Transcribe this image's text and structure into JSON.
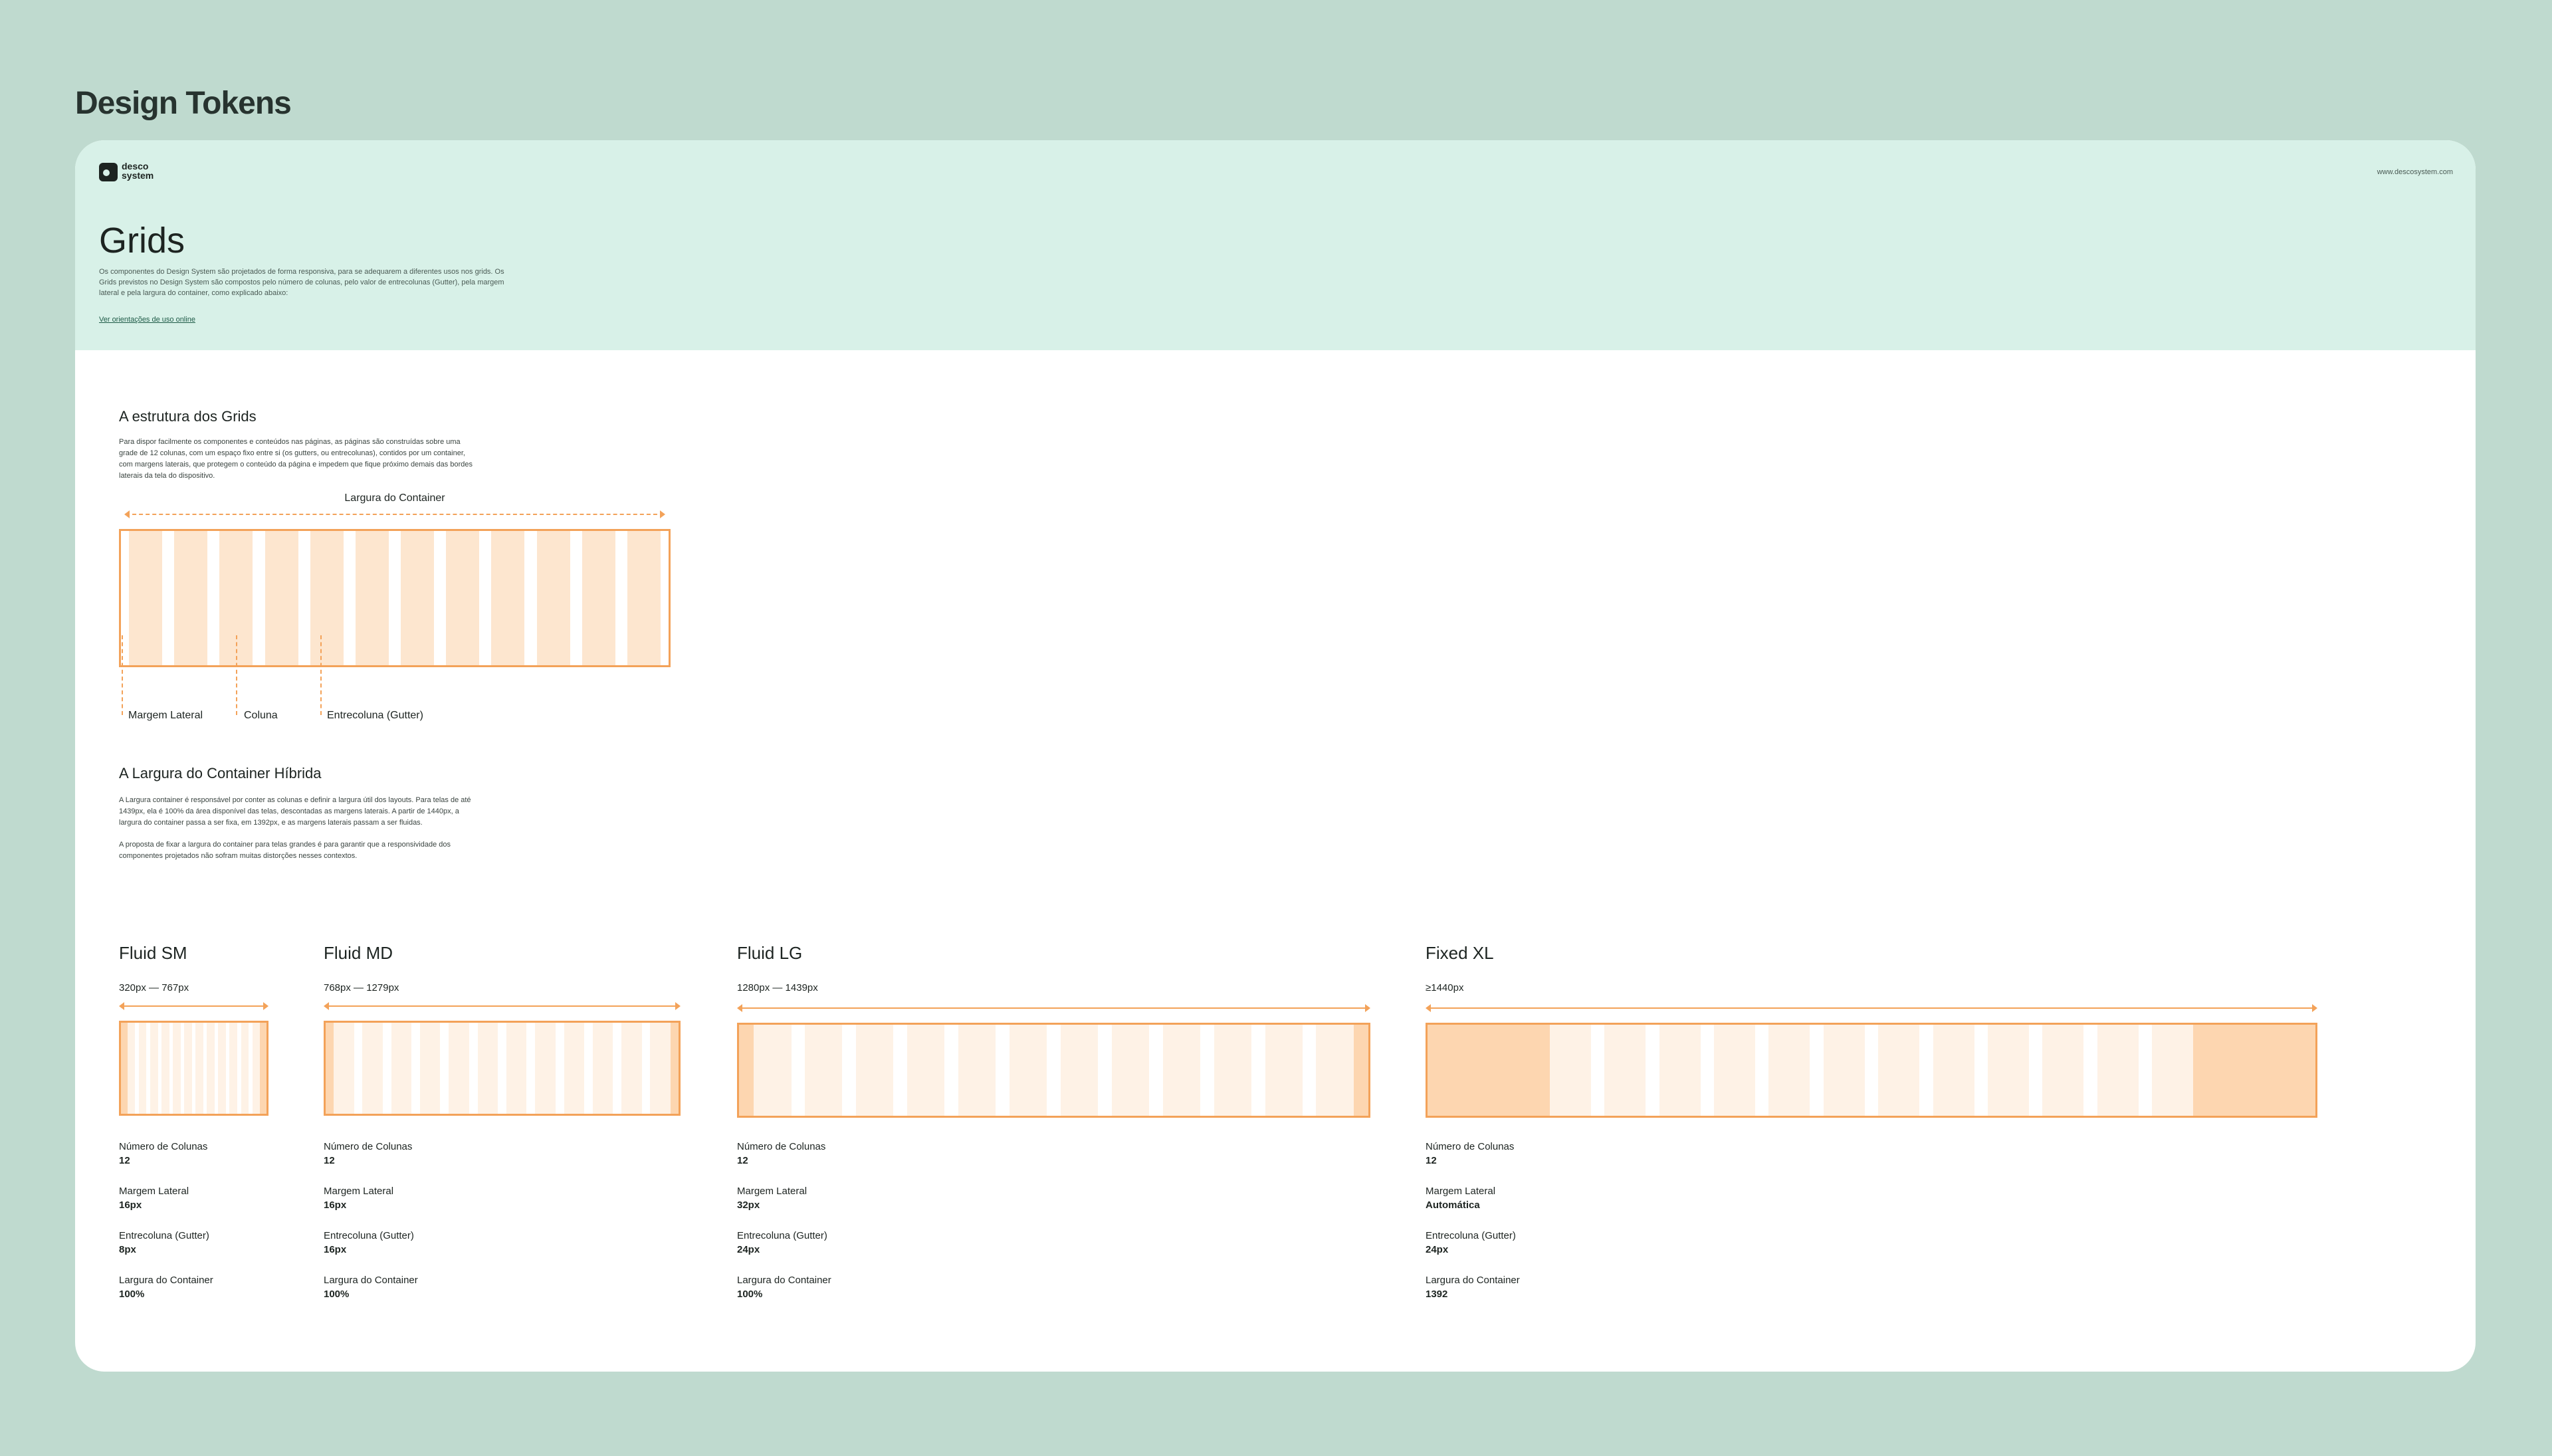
{
  "page_title": "Design Tokens",
  "header": {
    "logo": "desco system",
    "url": "www.descosystem.com",
    "title": "Grids",
    "description": "Os componentes do Design System são projetados de forma responsiva, para se adequarem a diferentes usos nos grids. Os Grids previstos no Design System são compostos pelo número de colunas, pelo valor de entrecolunas (Gutter), pela margem lateral e pela largura do container, como explicado abaixo:",
    "link": "Ver orientações de uso online"
  },
  "structure": {
    "title": "A estrutura dos Grids",
    "text": "Para dispor facilmente os componentes e conteúdos nas páginas, as páginas são construídas sobre uma grade de 12 colunas, com um espaço fixo entre si (os gutters, ou entrecolunas), contidos por um container, com margens laterais, que protegem o conteúdo da página e impedem que fique próximo demais das bordes laterais da tela do dispositivo.",
    "container_label": "Largura do Container",
    "annotations": [
      "Margem Lateral",
      "Coluna",
      "Entrecoluna (Gutter)"
    ]
  },
  "hybrid": {
    "title": "A Largura do Container Híbrida",
    "paragraphs": [
      "A Largura container é responsável por conter as colunas e definir a largura útil dos layouts. Para telas de até 1439px, ela é 100% da área disponível das telas, descontadas as margens laterais. A partir de 1440px, a largura do container passa a ser fixa, em 1392px, e as margens laterais passam a ser fluidas.",
      "A proposta de fixar a largura do container para telas grandes é para garantir que a responsividade dos componentes projetados não sofram muitas distorções nesses contextos."
    ]
  },
  "grids": [
    {
      "name": "Fluid SM",
      "range": "320px — 767px",
      "specs": [
        {
          "label": "Número de Colunas",
          "value": "12"
        },
        {
          "label": "Margem Lateral",
          "value": "16px"
        },
        {
          "label": "Entrecoluna (Gutter)",
          "value": "8px"
        },
        {
          "label": "Largura do Container",
          "value": "100%"
        }
      ]
    },
    {
      "name": "Fluid MD",
      "range": "768px — 1279px",
      "specs": [
        {
          "label": "Número de Colunas",
          "value": "12"
        },
        {
          "label": "Margem Lateral",
          "value": "16px"
        },
        {
          "label": "Entrecoluna (Gutter)",
          "value": "16px"
        },
        {
          "label": "Largura do Container",
          "value": "100%"
        }
      ]
    },
    {
      "name": "Fluid LG",
      "range": "1280px — 1439px",
      "specs": [
        {
          "label": "Número de Colunas",
          "value": "12"
        },
        {
          "label": "Margem Lateral",
          "value": "32px"
        },
        {
          "label": "Entrecoluna (Gutter)",
          "value": "24px"
        },
        {
          "label": "Largura do Container",
          "value": "100%"
        }
      ]
    },
    {
      "name": "Fixed XL",
      "range": "≥1440px",
      "specs": [
        {
          "label": "Número de Colunas",
          "value": "12"
        },
        {
          "label": "Margem Lateral",
          "value": "Automática"
        },
        {
          "label": "Entrecoluna (Gutter)",
          "value": "24px"
        },
        {
          "label": "Largura do Container",
          "value": "1392"
        }
      ]
    }
  ]
}
